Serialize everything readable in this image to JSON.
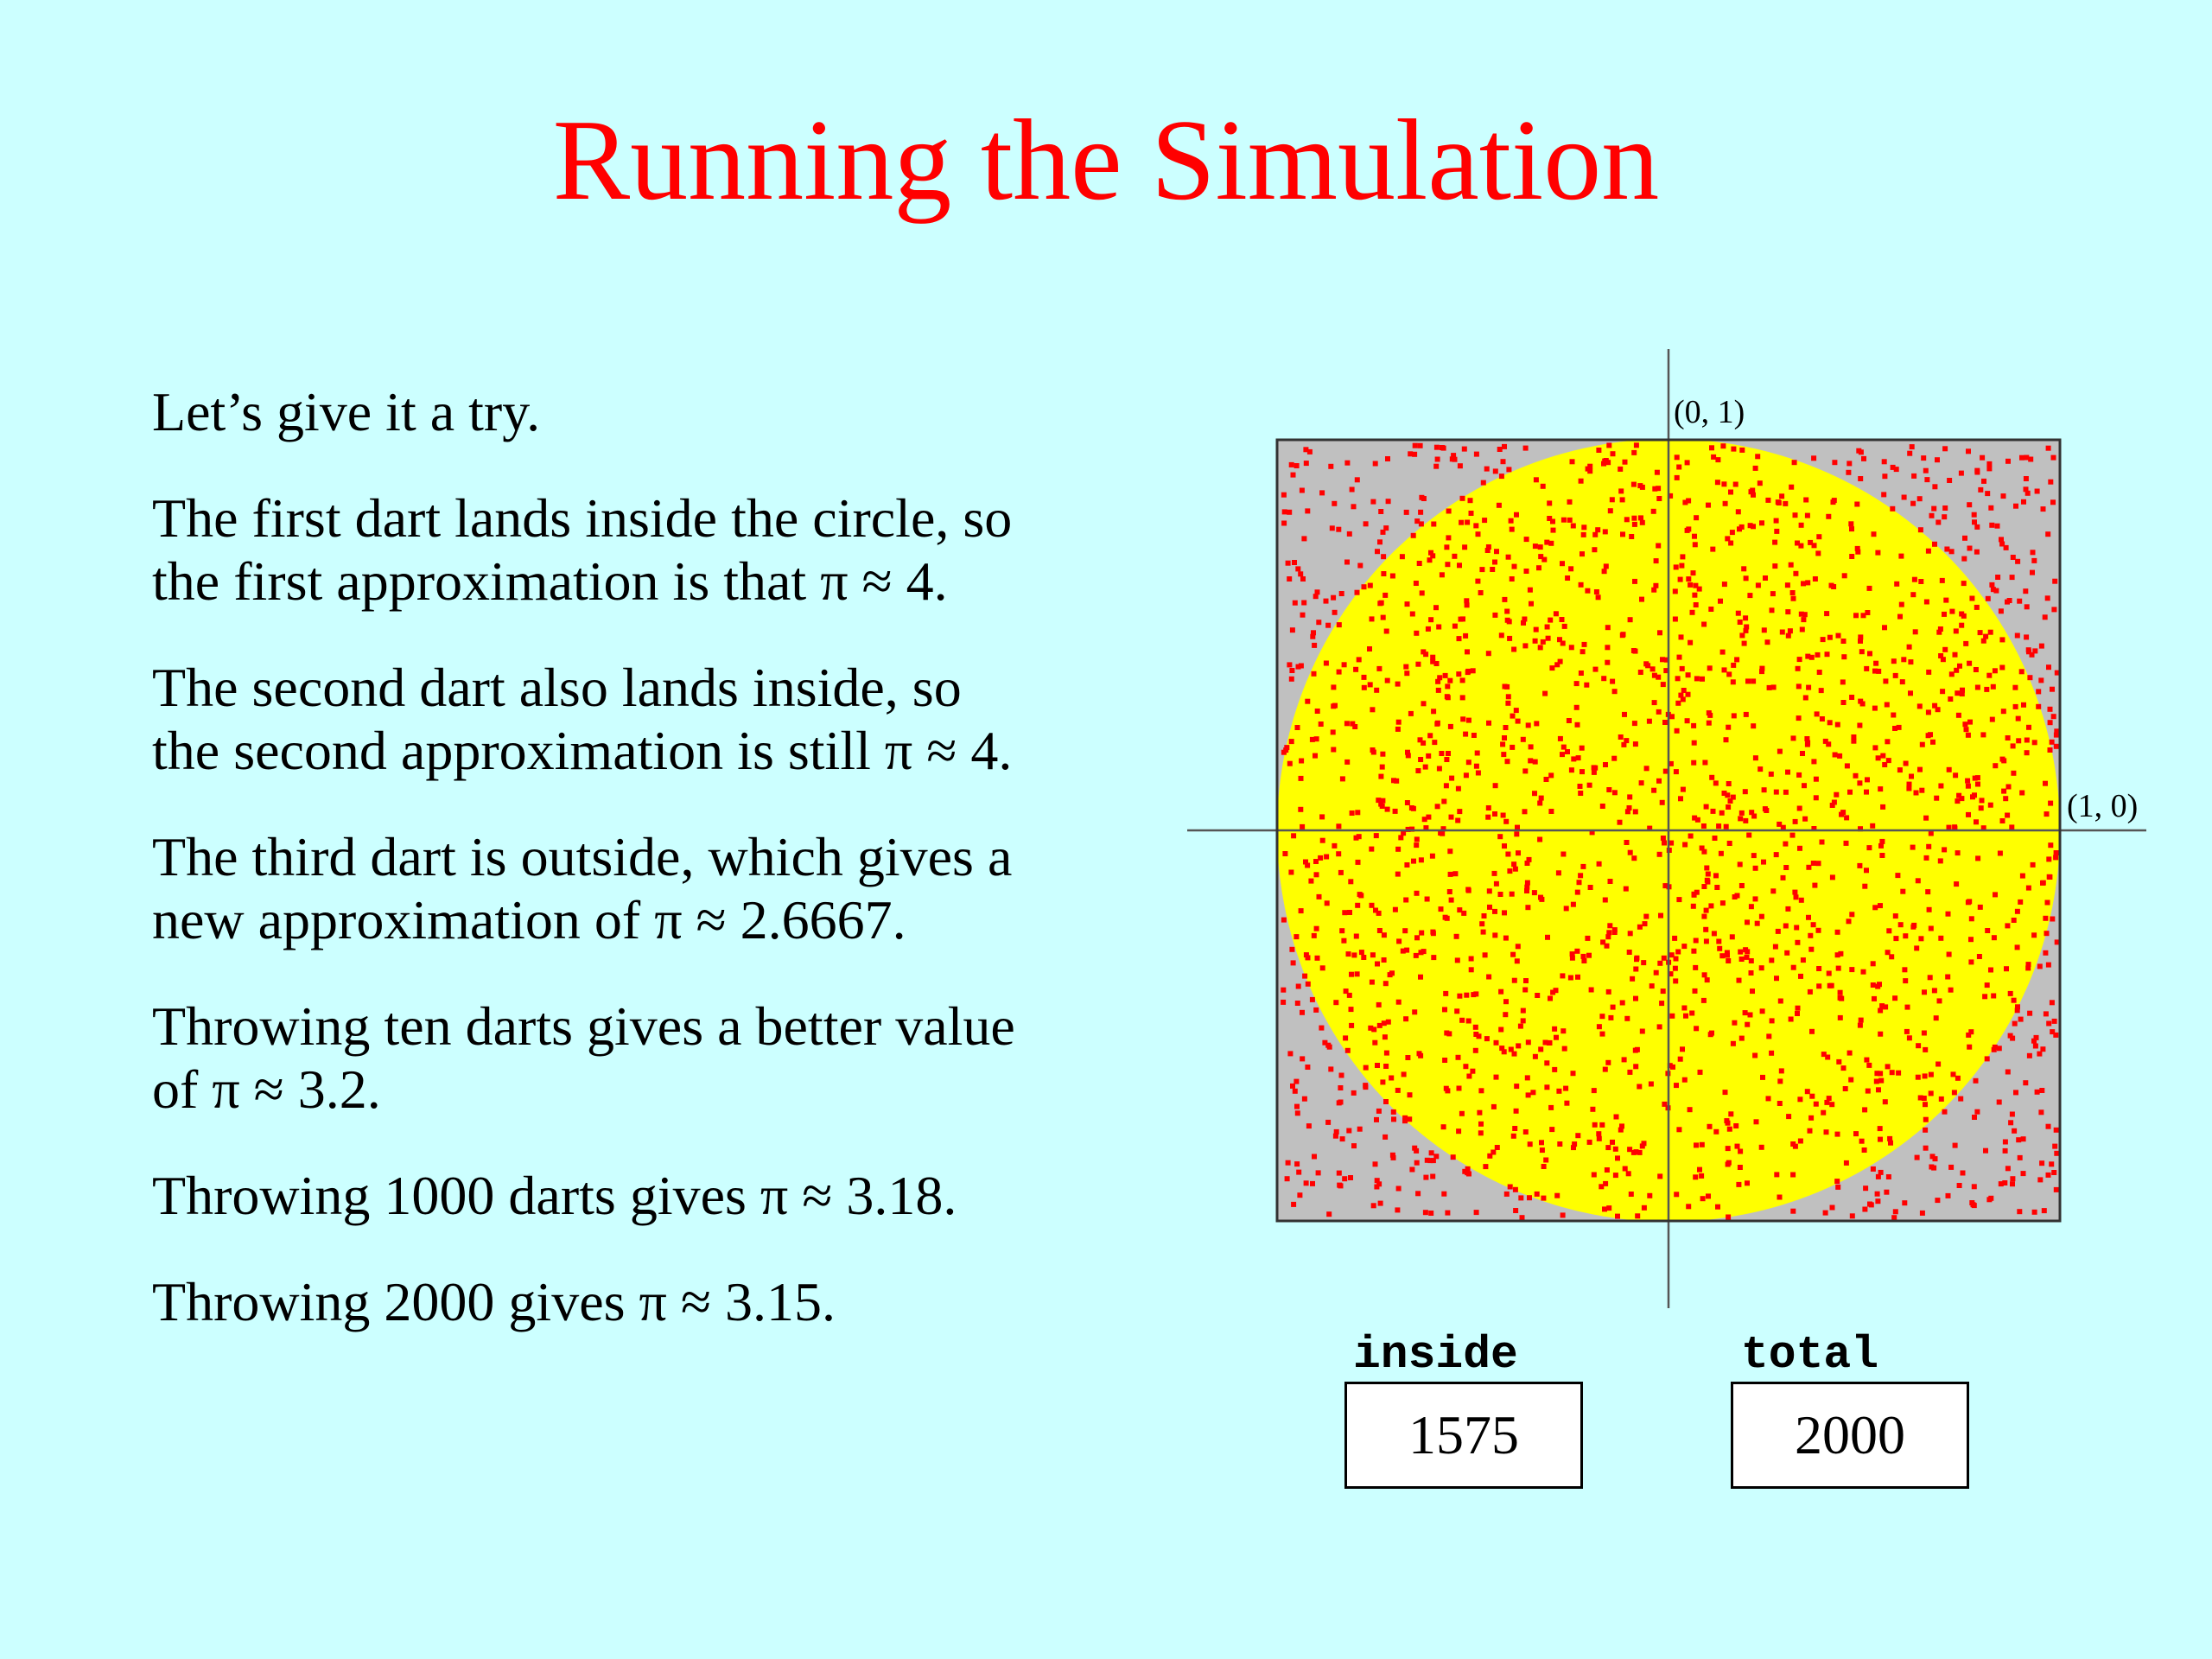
{
  "title": "Running the Simulation",
  "paragraphs": [
    [
      "Let’s give it a try."
    ],
    [
      "The first dart lands inside the circle, so",
      "the first approximation is that π ≈ 4."
    ],
    [
      "The second dart also lands inside, so",
      "the second approximation is still π ≈ 4."
    ],
    [
      "The third dart is outside, which gives a",
      "new approximation of π ≈ 2.6667."
    ],
    [
      "Throwing ten darts gives a better value",
      "of π ≈ 3.2."
    ],
    [
      "Throwing 1000 darts gives π ≈ 3.18."
    ],
    [
      "Throwing 2000 gives π ≈ 3.15."
    ]
  ],
  "diagram": {
    "label_top": "(0, 1)",
    "label_right": "(1, 0)",
    "square_color": "#c0c0c0",
    "circle_color": "#ffff00",
    "dart_color": "#ff0000",
    "dart_count": 2000
  },
  "counters": {
    "inside": {
      "label": "inside",
      "value": "1575"
    },
    "total": {
      "label": "total",
      "value": "2000"
    }
  }
}
